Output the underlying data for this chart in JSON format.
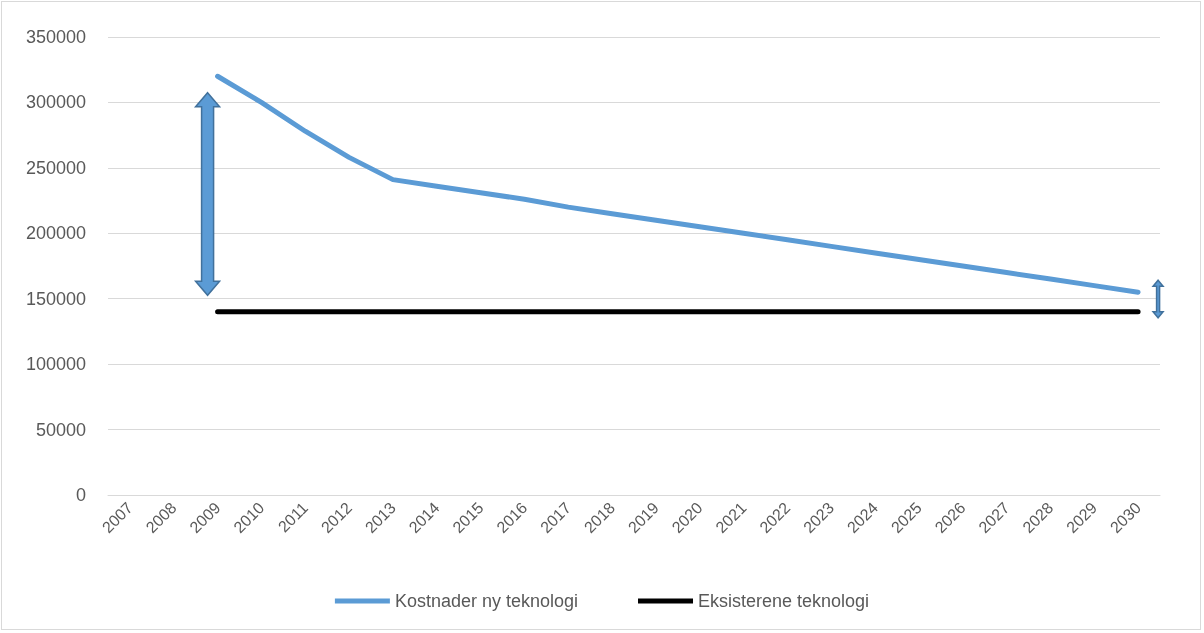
{
  "chart_data": {
    "type": "line",
    "categories": [
      "2007",
      "2008",
      "2009",
      "2010",
      "2011",
      "2012",
      "2013",
      "2014",
      "2015",
      "2016",
      "2017",
      "2018",
      "2019",
      "2020",
      "2021",
      "2022",
      "2023",
      "2024",
      "2025",
      "2026",
      "2027",
      "2028",
      "2029",
      "2030"
    ],
    "series": [
      {
        "name": "Kostnader ny teknologi",
        "color": "#5b9bd5",
        "values": [
          null,
          null,
          320000,
          300000,
          278000,
          258000,
          241000,
          236000,
          231000,
          226000,
          220000,
          215000,
          210000,
          205000,
          200000,
          195000,
          190000,
          185000,
          180000,
          175000,
          170000,
          165000,
          160000,
          155000
        ]
      },
      {
        "name": "Eksisterene teknologi",
        "color": "#000000",
        "values": [
          null,
          null,
          140000,
          140000,
          140000,
          140000,
          140000,
          140000,
          140000,
          140000,
          140000,
          140000,
          140000,
          140000,
          140000,
          140000,
          140000,
          140000,
          140000,
          140000,
          140000,
          140000,
          140000,
          140000
        ]
      }
    ],
    "ylim": [
      0,
      350000
    ],
    "yticks": [
      0,
      50000,
      100000,
      150000,
      200000,
      250000,
      300000,
      350000
    ],
    "grid": "y",
    "legend": "bottom",
    "marker": "none",
    "line_style": "solid"
  }
}
